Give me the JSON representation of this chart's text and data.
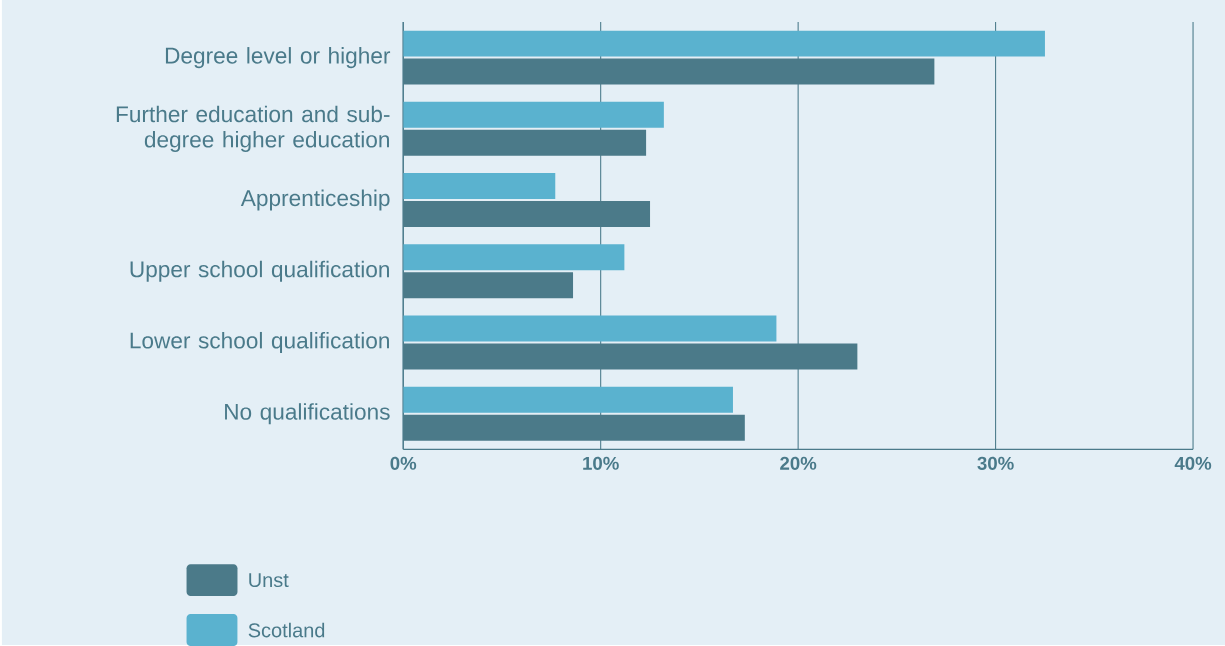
{
  "chart_data": {
    "type": "bar",
    "orientation": "horizontal",
    "categories": [
      "Degree level or higher",
      "Further education and sub-degree higher education",
      "Apprenticeship",
      "Upper school qualification",
      "Lower school qualification",
      "No qualifications"
    ],
    "series": [
      {
        "name": "Unst",
        "color": "#4b7a89",
        "values": [
          26.9,
          12.3,
          12.5,
          8.6,
          23.0,
          17.3
        ]
      },
      {
        "name": "Scotland",
        "color": "#5ab2cf",
        "values": [
          32.5,
          13.2,
          7.7,
          11.2,
          18.9,
          16.7
        ]
      }
    ],
    "xlim": [
      0,
      40
    ],
    "xticks": [
      {
        "value": 0,
        "label": "0%"
      },
      {
        "value": 10,
        "label": "10%"
      },
      {
        "value": 20,
        "label": "20%"
      },
      {
        "value": 30,
        "label": "30%"
      },
      {
        "value": 40,
        "label": "40%"
      }
    ],
    "grid": "x",
    "legend": "bottom left"
  }
}
